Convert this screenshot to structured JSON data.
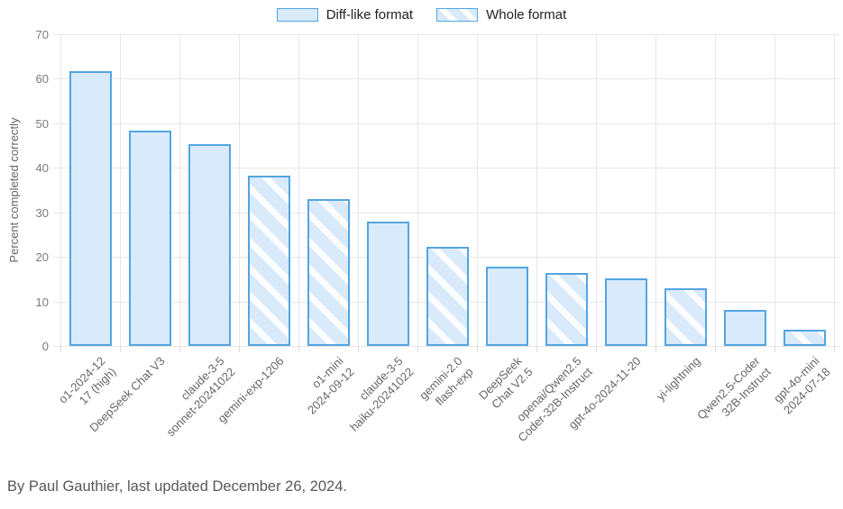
{
  "chart_data": {
    "type": "bar",
    "title": "",
    "xlabel": "",
    "ylabel": "Percent completed correctly",
    "ylim": [
      0,
      70
    ],
    "yticks": [
      0,
      10,
      20,
      30,
      40,
      50,
      60,
      70
    ],
    "grid": true,
    "legend_position": "top-center",
    "legend": [
      {
        "label": "Diff-like format",
        "style": "solid"
      },
      {
        "label": "Whole format",
        "style": "striped"
      }
    ],
    "bars": [
      {
        "label": "o1-2024-12-17 (high)",
        "label_lines": [
          "o1-2024-12",
          "17 (high)"
        ],
        "value": 61.7,
        "format": "diff"
      },
      {
        "label": "DeepSeek Chat V3",
        "label_lines": [
          "DeepSeek Chat V3"
        ],
        "value": 48.4,
        "format": "diff"
      },
      {
        "label": "claude-3-5-sonnet-20241022",
        "label_lines": [
          "claude-3-5",
          "sonnet-20241022"
        ],
        "value": 45.3,
        "format": "diff"
      },
      {
        "label": "gemini-exp-1206",
        "label_lines": [
          "gemini-exp-1206"
        ],
        "value": 38.2,
        "format": "whole"
      },
      {
        "label": "o1-mini 2024-09-12",
        "label_lines": [
          "o1-mini",
          "2024-09-12"
        ],
        "value": 32.9,
        "format": "whole"
      },
      {
        "label": "claude-3-5-haiku-20241022",
        "label_lines": [
          "claude-3-5",
          "haiku-20241022"
        ],
        "value": 28.0,
        "format": "diff"
      },
      {
        "label": "gemini-2.0-flash-exp",
        "label_lines": [
          "gemini-2.0",
          "flash-exp"
        ],
        "value": 22.2,
        "format": "whole"
      },
      {
        "label": "DeepSeek Chat V2.5",
        "label_lines": [
          "DeepSeek",
          "Chat V2.5"
        ],
        "value": 17.8,
        "format": "diff"
      },
      {
        "label": "openai/Qwen2.5-Coder-32B-Instruct",
        "label_lines": [
          "openai/Qwen2.5",
          "Coder-32B-Instruct"
        ],
        "value": 16.4,
        "format": "whole"
      },
      {
        "label": "gpt-4o-2024-11-20",
        "label_lines": [
          "gpt-4o-2024-11-20"
        ],
        "value": 15.1,
        "format": "diff"
      },
      {
        "label": "yi-lightning",
        "label_lines": [
          "yi-lightning"
        ],
        "value": 12.9,
        "format": "whole"
      },
      {
        "label": "Qwen2.5-Coder-32B-Instruct",
        "label_lines": [
          "Qwen2.5-Coder",
          "32B-Instruct"
        ],
        "value": 8.0,
        "format": "diff"
      },
      {
        "label": "gpt-4o-mini 2024-07-18",
        "label_lines": [
          "gpt-4o-mini",
          "2024-07-18"
        ],
        "value": 3.6,
        "format": "whole"
      }
    ]
  },
  "footer": {
    "byline": "By Paul Gauthier, last updated December 26, 2024."
  },
  "colors": {
    "bar_fill": "#d9eafb",
    "bar_border": "#54a5e2",
    "grid": "#e7e7e7",
    "axis_text": "#7b7b7b",
    "label_text": "#666666",
    "footer_text": "#58585a"
  }
}
